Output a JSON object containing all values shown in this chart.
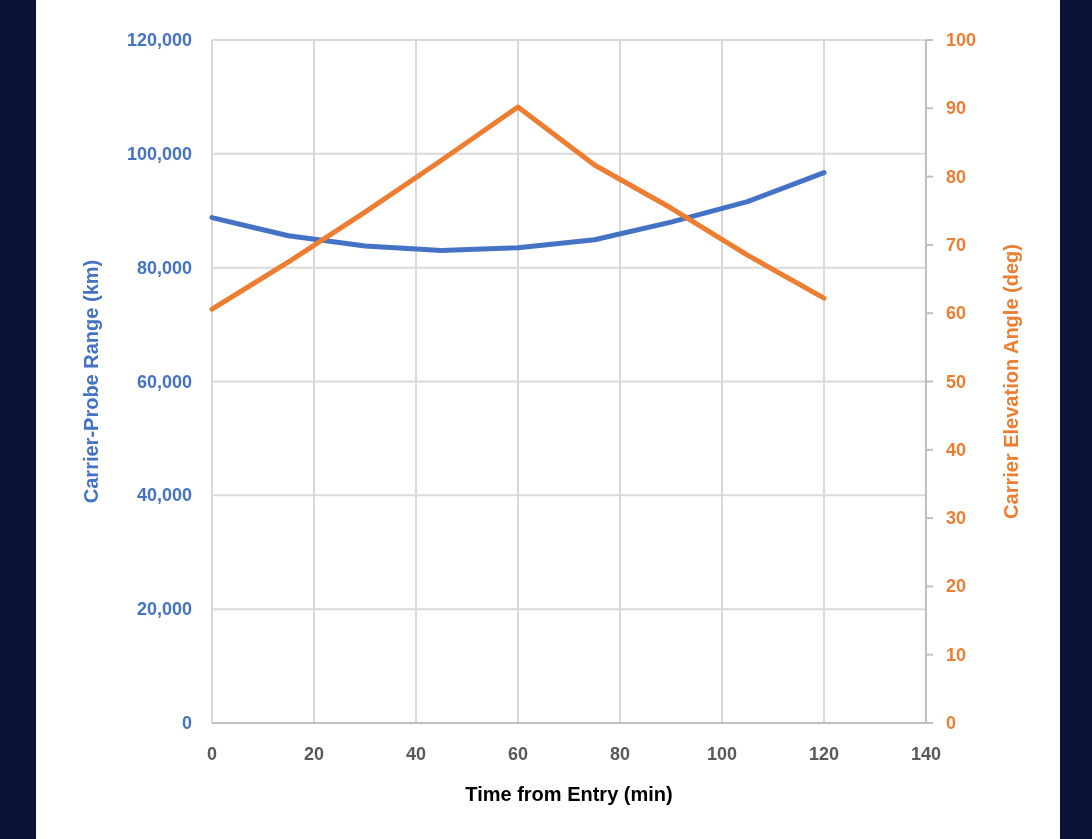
{
  "chart_data": {
    "type": "line",
    "xlabel": "Time from Entry (min)",
    "ylabel": "Carrier-Probe Range (km)",
    "y2label": "Carrier Elevation Angle (deg)",
    "x": [
      0,
      15,
      30,
      45,
      60,
      75,
      90,
      105,
      120
    ],
    "series": [
      {
        "color": "#4472c4",
        "values": [
          88800,
          85600,
          83800,
          83000,
          83500,
          84900,
          88000,
          91600,
          96700
        ]
      },
      {
        "color": "#ed7d31",
        "axis": "y2",
        "values": [
          60.6,
          67.5,
          74.8,
          82.4,
          90.2,
          81.7,
          75.4,
          68.5,
          62.2
        ]
      }
    ],
    "xlim": [
      0,
      140
    ],
    "xticks": [
      0,
      20,
      40,
      60,
      80,
      100,
      120,
      140
    ],
    "ylim": [
      0,
      120000
    ],
    "yticks": [
      0,
      {
        "value": 20000,
        "label": "20,000"
      },
      {
        "value": 40000,
        "label": "40,000"
      },
      {
        "value": 60000,
        "label": "60,000"
      },
      {
        "value": 80000,
        "label": "80,000"
      },
      {
        "value": 100000,
        "label": "100,000"
      },
      {
        "value": 120000,
        "label": "120,000"
      }
    ],
    "y2lim": [
      0,
      100
    ],
    "y2ticks": [
      0,
      10,
      20,
      30,
      40,
      50,
      60,
      70,
      80,
      90,
      100
    ],
    "grid": true,
    "marker": "none",
    "line_style": "solid"
  }
}
